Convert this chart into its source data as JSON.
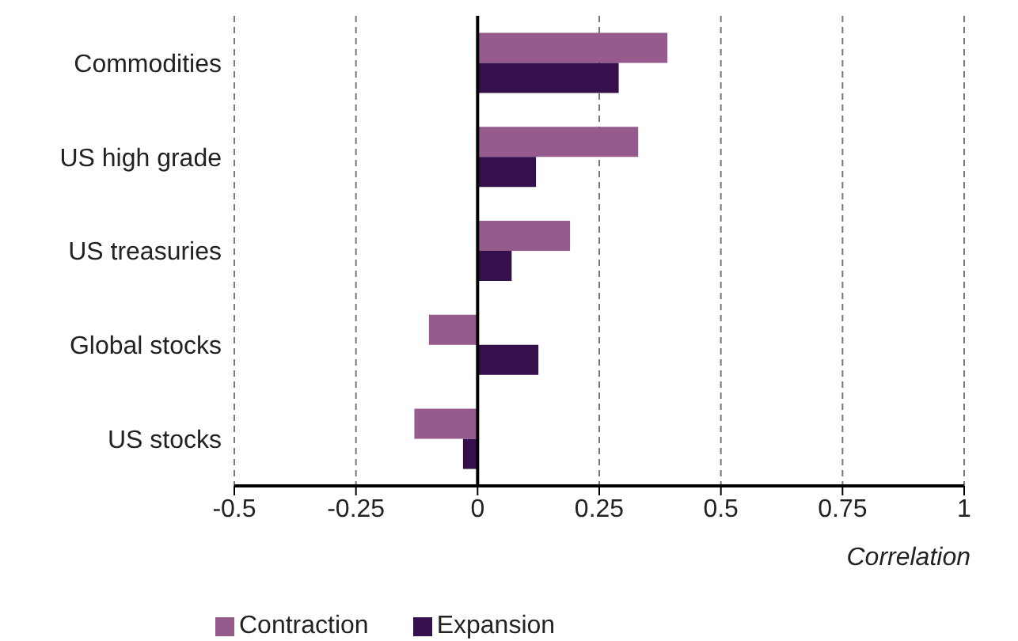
{
  "chart_data": {
    "type": "bar",
    "orientation": "horizontal",
    "xlabel": "Correlation",
    "categories": [
      "Commodities",
      "US high grade",
      "US treasuries",
      "Global stocks",
      "US stocks"
    ],
    "series": [
      {
        "name": "Contraction",
        "color": "#955b8c",
        "values": [
          0.39,
          0.33,
          0.19,
          -0.1,
          -0.13
        ]
      },
      {
        "name": "Expansion",
        "color": "#35104d",
        "values": [
          0.29,
          0.12,
          0.07,
          0.125,
          -0.03
        ]
      }
    ],
    "xlim": [
      -0.5,
      1
    ],
    "xticks": [
      -0.5,
      -0.25,
      0,
      0.25,
      0.5,
      0.75,
      1
    ],
    "grid": "x",
    "legend": "bottom left"
  }
}
